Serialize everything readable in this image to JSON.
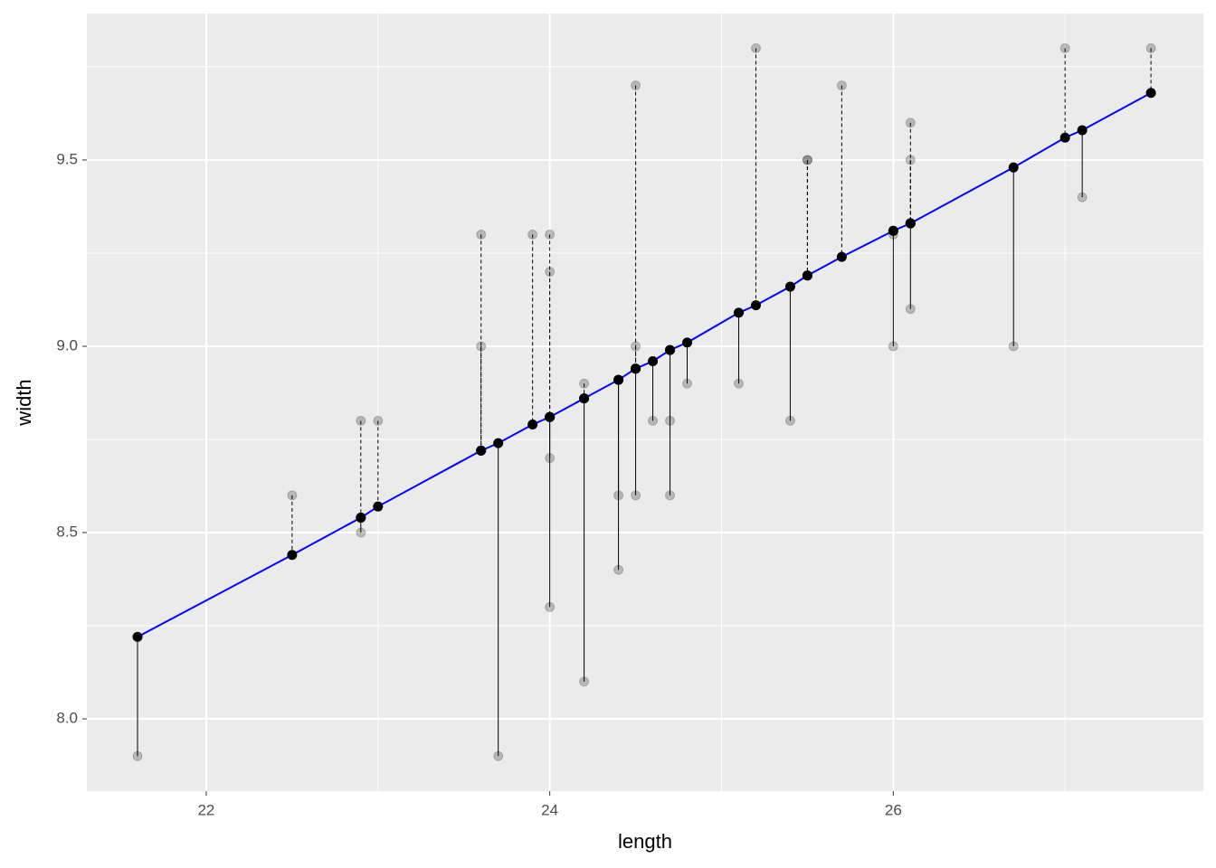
{
  "chart_data": {
    "type": "scatter",
    "x_label": "length",
    "y_label": "width",
    "x": [
      21.6,
      22.5,
      22.9,
      22.9,
      23.0,
      23.6,
      23.6,
      23.7,
      23.9,
      24.0,
      24.0,
      24.0,
      24.0,
      24.2,
      24.2,
      24.4,
      24.4,
      24.5,
      24.5,
      24.5,
      24.6,
      24.7,
      24.7,
      24.8,
      25.1,
      25.2,
      25.4,
      25.5,
      25.5,
      25.7,
      26.0,
      26.0,
      26.1,
      26.1,
      26.1,
      26.7,
      27.0,
      27.1,
      27.5
    ],
    "y": [
      7.9,
      8.6,
      8.8,
      8.5,
      8.8,
      9.3,
      9.0,
      7.9,
      9.3,
      9.3,
      9.2,
      8.7,
      8.3,
      8.9,
      8.1,
      8.6,
      8.4,
      9.7,
      9.0,
      8.6,
      8.8,
      8.8,
      8.6,
      8.9,
      8.9,
      9.8,
      8.8,
      9.5,
      9.5,
      9.7,
      9.3,
      9.0,
      9.6,
      9.5,
      9.1,
      9.0,
      9.8,
      9.4,
      9.8
    ],
    "fitted": [
      8.22,
      8.44,
      8.54,
      8.54,
      8.57,
      8.72,
      8.72,
      8.74,
      8.79,
      8.81,
      8.81,
      8.81,
      8.81,
      8.86,
      8.86,
      8.91,
      8.91,
      8.94,
      8.94,
      8.94,
      8.96,
      8.99,
      8.99,
      9.01,
      9.09,
      9.11,
      9.16,
      9.19,
      9.19,
      9.24,
      9.31,
      9.31,
      9.33,
      9.33,
      9.33,
      9.48,
      9.56,
      9.58,
      9.68
    ],
    "colors": {
      "observed": "#000000",
      "fitted": "#000000",
      "line": "#0000ff",
      "residual": "#000000"
    },
    "xlim": [
      21.305,
      27.805
    ],
    "ylim": [
      7.806,
      9.893
    ],
    "xticks": [
      22,
      24,
      26
    ],
    "yticks": [
      {
        "value": 8.0,
        "label": "8.0"
      },
      {
        "value": 8.5,
        "label": "8.5"
      },
      {
        "value": 9.0,
        "label": "9.0"
      },
      {
        "value": 9.5,
        "label": "9.5"
      }
    ],
    "xminor": [
      23,
      25,
      27
    ],
    "yminor": [
      8.25,
      8.75,
      9.25,
      9.75
    ],
    "grid": true
  }
}
